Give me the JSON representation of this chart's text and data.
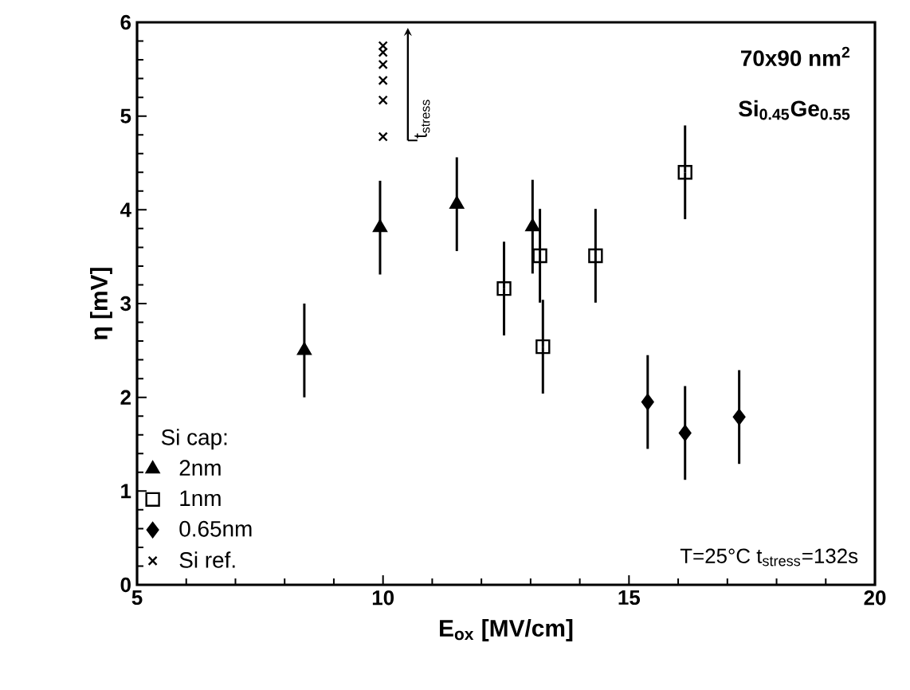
{
  "chart_data": {
    "type": "scatter",
    "xlabel": "E$_{ox}$ [MV/cm]",
    "ylabel": "η [mV]",
    "xlim": [
      5,
      20
    ],
    "ylim": [
      0,
      6
    ],
    "xticks": [
      5,
      10,
      15,
      20
    ],
    "yticks": [
      0,
      1,
      2,
      3,
      4,
      5,
      6
    ],
    "legend": "bottom left",
    "legend_title": "Si cap:",
    "grid": false,
    "series": [
      {
        "name": "2nm",
        "color": "#000000",
        "marker": "triangle",
        "x": [
          8.4,
          9.94,
          11.5,
          13.04
        ],
        "values": [
          2.5,
          3.81,
          4.06,
          3.82
        ],
        "errors": [
          0.5,
          0.5,
          0.5,
          0.5
        ]
      },
      {
        "name": "1nm",
        "color": "#000000",
        "marker": "square",
        "x": [
          12.46,
          13.19,
          13.25,
          14.32,
          16.14
        ],
        "values": [
          3.16,
          3.51,
          2.54,
          3.51,
          4.4
        ],
        "errors": [
          0.5,
          0.5,
          0.5,
          0.5,
          0.5
        ]
      },
      {
        "name": "0.65nm",
        "color": "#000000",
        "marker": "diamond",
        "x": [
          15.38,
          16.14,
          17.24
        ],
        "values": [
          1.95,
          1.62,
          1.79
        ],
        "errors": [
          0.5,
          0.5,
          0.5
        ]
      },
      {
        "name": "Si ref.",
        "color": "#000000",
        "marker": "cross",
        "x": [
          10.0,
          10.0,
          10.0,
          10.0,
          10.0,
          10.0
        ],
        "values": [
          4.78,
          5.17,
          5.38,
          5.55,
          5.68,
          5.75
        ]
      }
    ],
    "annotations": [
      "70x90 nm$^{2}$",
      "Si$_{0.45}$Ge$_{0.55}$",
      "T=25°C t$_{stress}$=132s",
      "t$_{stress}$"
    ]
  }
}
